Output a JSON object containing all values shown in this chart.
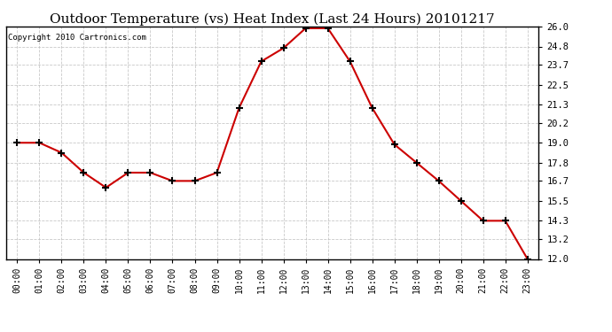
{
  "title": "Outdoor Temperature (vs) Heat Index (Last 24 Hours) 20101217",
  "copyright": "Copyright 2010 Cartronics.com",
  "x_labels": [
    "00:00",
    "01:00",
    "02:00",
    "03:00",
    "04:00",
    "05:00",
    "06:00",
    "07:00",
    "08:00",
    "09:00",
    "10:00",
    "11:00",
    "12:00",
    "13:00",
    "14:00",
    "15:00",
    "16:00",
    "17:00",
    "18:00",
    "19:00",
    "20:00",
    "21:00",
    "22:00",
    "23:00"
  ],
  "y_values": [
    19.0,
    19.0,
    18.4,
    17.2,
    16.3,
    17.2,
    17.2,
    16.7,
    16.7,
    17.2,
    21.1,
    23.9,
    24.7,
    25.9,
    25.9,
    23.9,
    21.1,
    18.9,
    17.8,
    16.7,
    15.5,
    14.3,
    14.3,
    12.0
  ],
  "line_color": "#cc0000",
  "marker": "+",
  "marker_color": "#000000",
  "marker_size": 6,
  "marker_linewidth": 1.5,
  "ylim": [
    12.0,
    26.0
  ],
  "yticks": [
    12.0,
    13.2,
    14.3,
    15.5,
    16.7,
    17.8,
    19.0,
    20.2,
    21.3,
    22.5,
    23.7,
    24.8,
    26.0
  ],
  "background_color": "#ffffff",
  "grid_color": "#bbbbbb",
  "title_fontsize": 11,
  "copyright_fontsize": 6.5,
  "tick_fontsize": 7,
  "ytick_fontsize": 7.5
}
